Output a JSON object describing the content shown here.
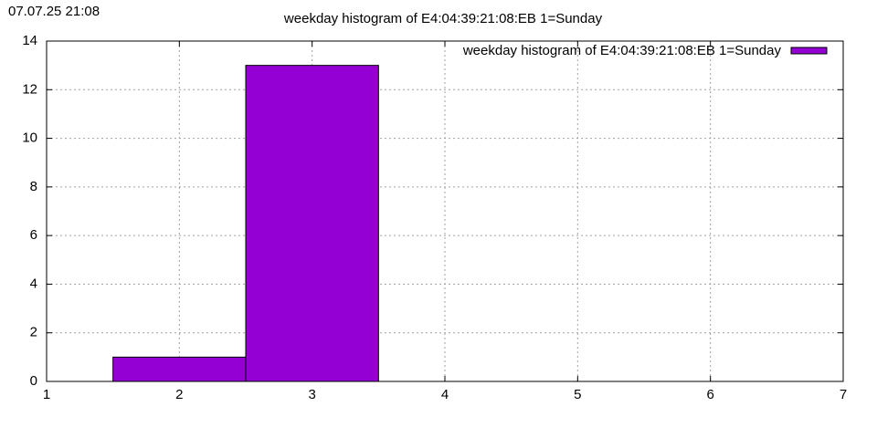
{
  "chart_data": {
    "type": "histogram",
    "timestamp": "07.07.25 21:08",
    "title": "weekday histogram of E4:04:39:21:08:EB 1=Sunday",
    "bins": [
      1.5,
      2.5,
      3.5
    ],
    "series": [
      {
        "name": "weekday histogram of E4:04:39:21:08:EB 1=Sunday",
        "color": "#9400d3",
        "values": [
          1,
          13
        ]
      }
    ],
    "xlim": [
      1,
      7
    ],
    "xticks": [
      1,
      2,
      3,
      4,
      5,
      6,
      7
    ],
    "ylim": [
      0,
      14
    ],
    "yticks": [
      0,
      2,
      4,
      6,
      8,
      10,
      12,
      14
    ],
    "grid": true,
    "legend": "top-right"
  }
}
